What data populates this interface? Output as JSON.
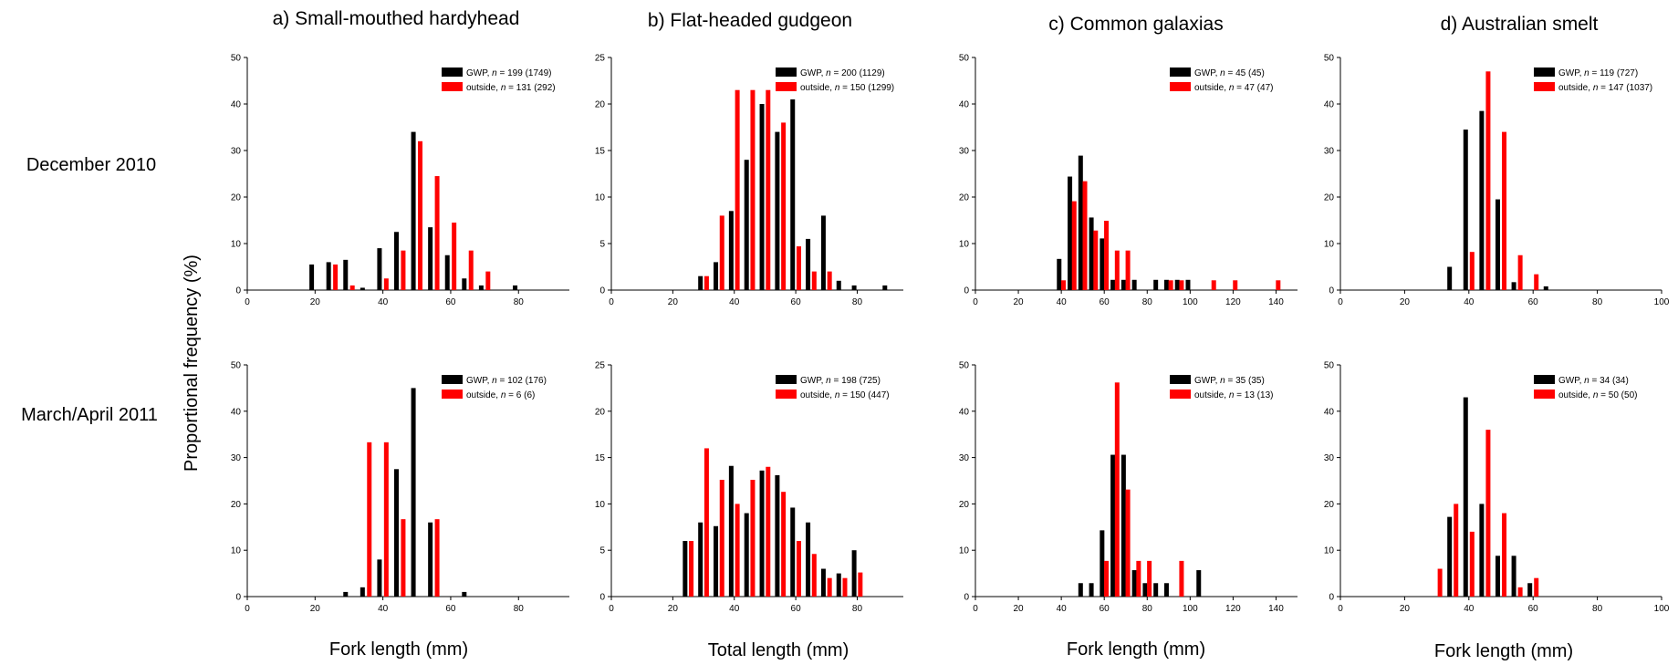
{
  "figure": {
    "ylabel": "Proportional frequency (%)",
    "row_labels": [
      "December 2010",
      "March/April 2011"
    ],
    "column_titles": [
      "a) Small-mouthed hardyhead",
      "b) Flat-headed gudgeon",
      "c) Common galaxias",
      "d) Australian smelt"
    ],
    "column_xlabels": [
      "Fork length (mm)",
      "Total length (mm)",
      "Fork length (mm)",
      "Fork length (mm)"
    ],
    "colors": {
      "GWP": "#000000",
      "outside": "#ff0000"
    }
  },
  "chart_data": [
    {
      "type": "bar",
      "panel": "a) Small-mouthed hardyhead",
      "period": "December 2010",
      "xlabel": "Fork length (mm)",
      "xlim": [
        0,
        95
      ],
      "ylim": [
        0,
        50
      ],
      "xticks": [
        0,
        20,
        40,
        60,
        80
      ],
      "yticks": [
        0,
        10,
        20,
        30,
        40,
        50
      ],
      "legend_position": "top-right",
      "series": [
        {
          "name": "GWP",
          "legend": [
            "GWP, ",
            "n",
            " = 199 (1749)"
          ],
          "x": [
            19,
            24,
            29,
            34,
            39,
            44,
            49,
            54,
            59,
            64,
            69,
            79
          ],
          "values": [
            5.5,
            6,
            6.5,
            0.5,
            9,
            12.5,
            34,
            13.5,
            7.5,
            2.5,
            1,
            1
          ]
        },
        {
          "name": "outside",
          "legend": [
            "outside, ",
            "n",
            " = 131 (292)"
          ],
          "x": [
            26,
            31,
            41,
            46,
            51,
            56,
            61,
            66,
            71
          ],
          "values": [
            5.5,
            1,
            2.5,
            8.5,
            32,
            24.5,
            14.5,
            8.5,
            4
          ]
        }
      ]
    },
    {
      "type": "bar",
      "panel": "b) Flat-headed gudgeon",
      "period": "December 2010",
      "xlabel": "Total length (mm)",
      "xlim": [
        0,
        95
      ],
      "ylim": [
        0,
        25
      ],
      "xticks": [
        0,
        20,
        40,
        60,
        80
      ],
      "yticks": [
        0,
        5,
        10,
        15,
        20,
        25
      ],
      "legend_position": "top-right",
      "series": [
        {
          "name": "GWP",
          "legend": [
            "GWP, ",
            "n",
            " = 200 (1129)"
          ],
          "x": [
            29,
            34,
            39,
            44,
            49,
            54,
            59,
            64,
            69,
            74,
            79,
            89
          ],
          "values": [
            1.5,
            3,
            8.5,
            14,
            20,
            17,
            20.5,
            5.5,
            8,
            1,
            0.5,
            0.5
          ]
        },
        {
          "name": "outside",
          "legend": [
            "outside, ",
            "n",
            " = 150 (1299)"
          ],
          "x": [
            31,
            36,
            41,
            46,
            51,
            56,
            61,
            66,
            71
          ],
          "values": [
            1.5,
            8,
            21.5,
            21.5,
            21.5,
            18,
            4.7,
            2,
            2
          ]
        }
      ]
    },
    {
      "type": "bar",
      "panel": "c) Common galaxias",
      "period": "December 2010",
      "xlabel": "Fork length (mm)",
      "xlim": [
        0,
        150
      ],
      "ylim": [
        0,
        50
      ],
      "xticks": [
        0,
        20,
        40,
        60,
        80,
        100,
        120,
        140
      ],
      "yticks": [
        0,
        10,
        20,
        30,
        40,
        50
      ],
      "legend_position": "top-right",
      "series": [
        {
          "name": "GWP",
          "legend": [
            "GWP, ",
            "n",
            " = 45 (45)"
          ],
          "x": [
            39,
            44,
            49,
            54,
            59,
            64,
            69,
            74,
            84,
            89,
            94,
            99
          ],
          "values": [
            6.7,
            24.4,
            28.9,
            15.6,
            11.1,
            2.2,
            2.2,
            2.2,
            2.2,
            2.2,
            2.2,
            2.2
          ]
        },
        {
          "name": "outside",
          "legend": [
            "outside, ",
            "n",
            " = 47 (47)"
          ],
          "x": [
            41,
            46,
            51,
            56,
            61,
            66,
            71,
            91,
            96,
            111,
            121,
            141
          ],
          "values": [
            2.1,
            19.1,
            23.4,
            12.8,
            14.9,
            8.5,
            8.5,
            2.1,
            2.1,
            2.1,
            2.1,
            2.1
          ]
        }
      ]
    },
    {
      "type": "bar",
      "panel": "d) Australian smelt",
      "period": "December 2010",
      "xlabel": "Fork length (mm)",
      "xlim": [
        0,
        100
      ],
      "ylim": [
        0,
        50
      ],
      "xticks": [
        0,
        20,
        40,
        60,
        80,
        100
      ],
      "yticks": [
        0,
        10,
        20,
        30,
        40,
        50
      ],
      "legend_position": "top-right",
      "series": [
        {
          "name": "GWP",
          "legend": [
            "GWP, ",
            "n",
            " = 119 (727)"
          ],
          "x": [
            34,
            39,
            44,
            49,
            54,
            64
          ],
          "values": [
            5,
            34.5,
            38.5,
            19.5,
            1.7,
            0.8
          ]
        },
        {
          "name": "outside",
          "legend": [
            "outside, ",
            "n",
            " = 147 (1037)"
          ],
          "x": [
            41,
            46,
            51,
            56,
            61
          ],
          "values": [
            8.2,
            47,
            34,
            7.5,
            3.4
          ]
        }
      ]
    },
    {
      "type": "bar",
      "panel": "a) Small-mouthed hardyhead",
      "period": "March/April 2011",
      "xlabel": "Fork length (mm)",
      "xlim": [
        0,
        95
      ],
      "ylim": [
        0,
        50
      ],
      "xticks": [
        0,
        20,
        40,
        60,
        80
      ],
      "yticks": [
        0,
        10,
        20,
        30,
        40,
        50
      ],
      "legend_position": "top-right",
      "series": [
        {
          "name": "GWP",
          "legend": [
            "GWP, ",
            "n",
            " = 102 (176)"
          ],
          "x": [
            29,
            34,
            39,
            44,
            49,
            54,
            64
          ],
          "values": [
            1,
            2,
            8,
            27.5,
            45,
            16,
            1
          ]
        },
        {
          "name": "outside",
          "legend": [
            "outside, ",
            "n",
            " = 6 (6)"
          ],
          "x": [
            36,
            41,
            46,
            56
          ],
          "values": [
            33.3,
            33.3,
            16.7,
            16.7
          ]
        }
      ]
    },
    {
      "type": "bar",
      "panel": "b) Flat-headed gudgeon",
      "period": "March/April 2011",
      "xlabel": "Total length (mm)",
      "xlim": [
        0,
        95
      ],
      "ylim": [
        0,
        25
      ],
      "xticks": [
        0,
        20,
        40,
        60,
        80
      ],
      "yticks": [
        0,
        5,
        10,
        15,
        20,
        25
      ],
      "legend_position": "top-right",
      "series": [
        {
          "name": "GWP",
          "legend": [
            "GWP, ",
            "n",
            " = 198 (725)"
          ],
          "x": [
            24,
            29,
            34,
            39,
            44,
            49,
            54,
            59,
            64,
            69,
            74,
            79
          ],
          "values": [
            6,
            8,
            7.6,
            14.1,
            9,
            13.6,
            13.1,
            9.6,
            8,
            3,
            2.5,
            5
          ]
        },
        {
          "name": "outside",
          "legend": [
            "outside, ",
            "n",
            " = 150 (447)"
          ],
          "x": [
            26,
            31,
            36,
            41,
            46,
            51,
            56,
            61,
            66,
            71,
            76,
            81
          ],
          "values": [
            6,
            16,
            12.6,
            10,
            12.6,
            14,
            11.3,
            6,
            4.6,
            2,
            2,
            2.6
          ]
        }
      ]
    },
    {
      "type": "bar",
      "panel": "c) Common galaxias",
      "period": "March/April 2011",
      "xlabel": "Fork length (mm)",
      "xlim": [
        0,
        150
      ],
      "ylim": [
        0,
        50
      ],
      "xticks": [
        0,
        20,
        40,
        60,
        80,
        100,
        120,
        140
      ],
      "yticks": [
        0,
        10,
        20,
        30,
        40,
        50
      ],
      "legend_position": "top-right",
      "series": [
        {
          "name": "GWP",
          "legend": [
            "GWP, ",
            "n",
            " = 35 (35)"
          ],
          "x": [
            49,
            54,
            59,
            64,
            69,
            74,
            79,
            84,
            89,
            104
          ],
          "values": [
            2.9,
            2.9,
            14.3,
            30.6,
            30.6,
            5.7,
            2.9,
            2.9,
            2.9,
            5.7
          ]
        },
        {
          "name": "outside",
          "legend": [
            "outside, ",
            "n",
            " = 13 (13)"
          ],
          "x": [
            61,
            66,
            71,
            76,
            81,
            96
          ],
          "values": [
            7.7,
            46.2,
            23.1,
            7.7,
            7.7,
            7.7
          ]
        }
      ]
    },
    {
      "type": "bar",
      "panel": "d) Australian smelt",
      "period": "March/April 2011",
      "xlabel": "Fork length (mm)",
      "xlim": [
        0,
        100
      ],
      "ylim": [
        0,
        50
      ],
      "xticks": [
        0,
        20,
        40,
        60,
        80,
        100
      ],
      "yticks": [
        0,
        10,
        20,
        30,
        40,
        50
      ],
      "legend_position": "top-right",
      "series": [
        {
          "name": "GWP",
          "legend": [
            "GWP, ",
            "n",
            " = 34 (34)"
          ],
          "x": [
            34,
            39,
            44,
            49,
            54,
            59
          ],
          "values": [
            17.2,
            43,
            20,
            8.8,
            8.8,
            2.9
          ]
        },
        {
          "name": "outside",
          "legend": [
            "outside, ",
            "n",
            " = 50 (50)"
          ],
          "x": [
            31,
            36,
            41,
            46,
            51,
            56,
            61
          ],
          "values": [
            6,
            20,
            14,
            36,
            18,
            2,
            4
          ]
        }
      ]
    }
  ]
}
